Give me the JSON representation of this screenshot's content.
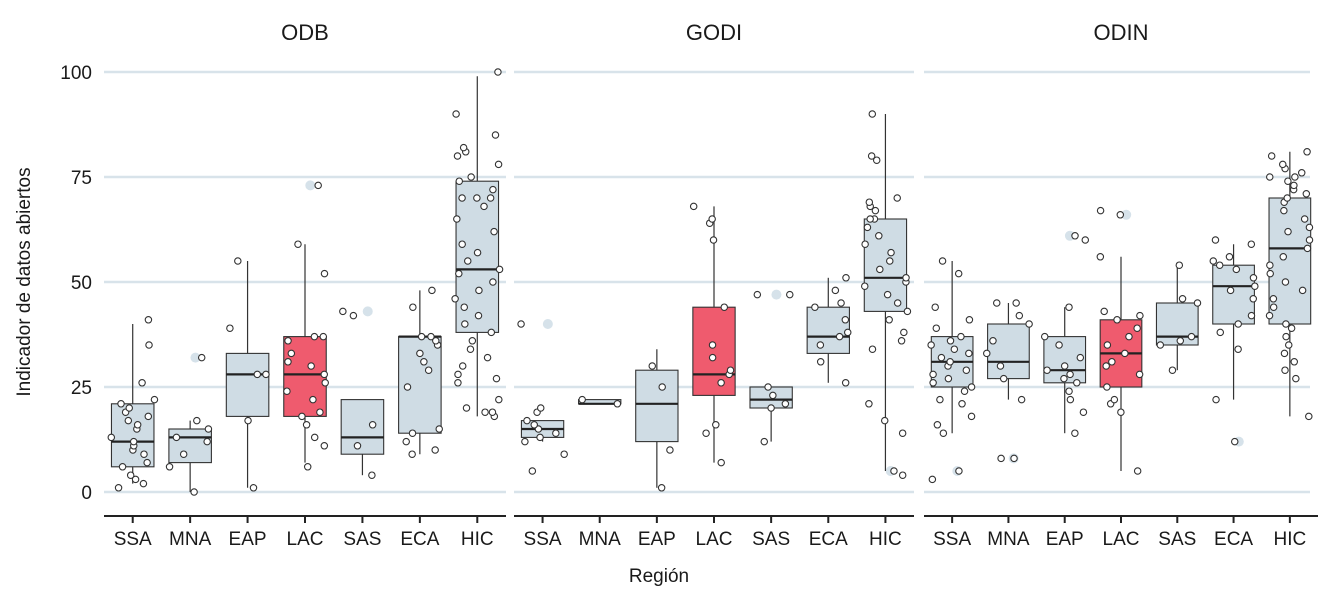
{
  "chart_data": {
    "type": "box",
    "ylabel": "Indicador de datos abiertos",
    "xlabel": "Región",
    "ylim": [
      0,
      100
    ],
    "yticks": [
      0,
      25,
      50,
      75,
      100
    ],
    "grid": true,
    "colors": {
      "default_box": "#cfdce4",
      "highlight_box": "#ef5b6e",
      "grid": "#d8e3ea",
      "outlier": "#d6e2ea"
    },
    "highlight_category": "LAC",
    "panels": [
      {
        "title": "ODB",
        "categories": [
          {
            "name": "SSA",
            "whisker_low": 2,
            "q1": 6,
            "median": 12,
            "q3": 21,
            "whisker_high": 40,
            "points": [
              1,
              2,
              3,
              4,
              6,
              7,
              9,
              10,
              11,
              12,
              13,
              15,
              16,
              17,
              18,
              19,
              20,
              21,
              22,
              26,
              35,
              41
            ],
            "outliers": []
          },
          {
            "name": "MNA",
            "whisker_low": 0,
            "q1": 7,
            "median": 13,
            "q3": 15,
            "whisker_high": 17,
            "points": [
              0,
              6,
              9,
              12,
              13,
              15,
              17,
              32
            ],
            "outliers": [
              32
            ]
          },
          {
            "name": "EAP",
            "whisker_low": 1,
            "q1": 18,
            "median": 28,
            "q3": 33,
            "whisker_high": 55,
            "points": [
              1,
              17,
              28,
              28,
              39,
              55
            ],
            "outliers": []
          },
          {
            "name": "LAC",
            "whisker_low": 7,
            "q1": 18,
            "median": 28,
            "q3": 37,
            "whisker_high": 59,
            "points": [
              6,
              11,
              13,
              16,
              18,
              19,
              22,
              24,
              26,
              28,
              30,
              31,
              33,
              36,
              37,
              37,
              52,
              59,
              73
            ],
            "outliers": [
              73
            ]
          },
          {
            "name": "SAS",
            "whisker_low": 4,
            "q1": 9,
            "median": 13,
            "q3": 22,
            "whisker_high": 22,
            "points": [
              4,
              11,
              16,
              42,
              43
            ],
            "outliers": [
              43
            ]
          },
          {
            "name": "ECA",
            "whisker_low": 9,
            "q1": 14,
            "median": 37,
            "q3": 37,
            "whisker_high": 48,
            "points": [
              9,
              10,
              12,
              14,
              15,
              25,
              29,
              31,
              33,
              35,
              36,
              37,
              37,
              44,
              48
            ],
            "outliers": []
          },
          {
            "name": "HIC",
            "whisker_low": 18,
            "q1": 38,
            "median": 53,
            "q3": 74,
            "whisker_high": 99,
            "points": [
              18,
              19,
              19,
              20,
              22,
              26,
              27,
              28,
              30,
              32,
              34,
              36,
              38,
              40,
              42,
              44,
              46,
              48,
              50,
              52,
              53,
              55,
              57,
              59,
              62,
              65,
              68,
              70,
              70,
              70,
              72,
              74,
              75,
              78,
              80,
              81,
              82,
              85,
              90,
              100
            ],
            "outliers": []
          }
        ]
      },
      {
        "title": "GODI",
        "categories": [
          {
            "name": "SSA",
            "whisker_low": 12,
            "q1": 13,
            "median": 15,
            "q3": 17,
            "whisker_high": 17,
            "points": [
              5,
              9,
              12,
              13,
              14,
              15,
              16,
              17,
              19,
              20,
              40
            ],
            "outliers": [
              40
            ]
          },
          {
            "name": "MNA",
            "whisker_low": 21,
            "q1": 21,
            "median": 21,
            "q3": 22,
            "whisker_high": 22,
            "points": [
              21,
              22
            ],
            "outliers": []
          },
          {
            "name": "EAP",
            "whisker_low": 1,
            "q1": 12,
            "median": 21,
            "q3": 29,
            "whisker_high": 34,
            "points": [
              1,
              10,
              25,
              30
            ],
            "outliers": []
          },
          {
            "name": "LAC",
            "whisker_low": 7,
            "q1": 23,
            "median": 28,
            "q3": 44,
            "whisker_high": 68,
            "points": [
              7,
              14,
              16,
              26,
              28,
              29,
              32,
              35,
              44,
              60,
              64,
              65,
              68
            ],
            "outliers": []
          },
          {
            "name": "SAS",
            "whisker_low": 12,
            "q1": 20,
            "median": 22,
            "q3": 25,
            "whisker_high": 25,
            "points": [
              12,
              20,
              21,
              23,
              25,
              47,
              47
            ],
            "outliers": [
              47
            ]
          },
          {
            "name": "ECA",
            "whisker_low": 26,
            "q1": 33,
            "median": 37,
            "q3": 44,
            "whisker_high": 51,
            "points": [
              26,
              31,
              35,
              37,
              38,
              41,
              44,
              45,
              48,
              51
            ],
            "outliers": []
          },
          {
            "name": "HIC",
            "whisker_low": 5,
            "q1": 43,
            "median": 51,
            "q3": 65,
            "whisker_high": 90,
            "points": [
              4,
              5,
              14,
              17,
              21,
              34,
              36,
              38,
              41,
              43,
              45,
              47,
              49,
              50,
              51,
              53,
              55,
              57,
              59,
              61,
              63,
              65,
              65,
              67,
              68,
              69,
              70,
              79,
              80,
              90
            ],
            "outliers": [
              5
            ]
          }
        ]
      },
      {
        "title": "ODIN",
        "categories": [
          {
            "name": "SSA",
            "whisker_low": 14,
            "q1": 25,
            "median": 31,
            "q3": 37,
            "whisker_high": 55,
            "points": [
              3,
              5,
              14,
              16,
              18,
              21,
              22,
              24,
              25,
              26,
              27,
              28,
              29,
              30,
              31,
              32,
              33,
              34,
              35,
              36,
              37,
              39,
              41,
              44,
              52,
              55
            ],
            "outliers": [
              5
            ]
          },
          {
            "name": "MNA",
            "whisker_low": 22,
            "q1": 27,
            "median": 31,
            "q3": 40,
            "whisker_high": 45,
            "points": [
              8,
              8,
              22,
              27,
              30,
              33,
              36,
              40,
              42,
              45,
              45
            ],
            "outliers": [
              8
            ]
          },
          {
            "name": "EAP",
            "whisker_low": 14,
            "q1": 26,
            "median": 29,
            "q3": 37,
            "whisker_high": 44,
            "points": [
              14,
              19,
              22,
              24,
              26,
              27,
              28,
              29,
              30,
              32,
              35,
              37,
              44,
              60,
              61
            ],
            "outliers": [
              61
            ]
          },
          {
            "name": "LAC",
            "whisker_low": 5,
            "q1": 25,
            "median": 33,
            "q3": 41,
            "whisker_high": 56,
            "points": [
              5,
              19,
              21,
              22,
              25,
              28,
              30,
              31,
              33,
              35,
              37,
              39,
              41,
              42,
              43,
              56,
              66,
              67
            ],
            "outliers": [
              66
            ]
          },
          {
            "name": "SAS",
            "whisker_low": 29,
            "q1": 35,
            "median": 37,
            "q3": 45,
            "whisker_high": 54,
            "points": [
              29,
              35,
              36,
              37,
              45,
              46,
              54
            ],
            "outliers": []
          },
          {
            "name": "ECA",
            "whisker_low": 22,
            "q1": 40,
            "median": 49,
            "q3": 54,
            "whisker_high": 59,
            "points": [
              12,
              22,
              34,
              38,
              40,
              42,
              46,
              48,
              49,
              51,
              53,
              54,
              55,
              56,
              59,
              60
            ],
            "outliers": [
              12
            ]
          },
          {
            "name": "HIC",
            "whisker_low": 18,
            "q1": 40,
            "median": 58,
            "q3": 70,
            "whisker_high": 81,
            "points": [
              18,
              27,
              29,
              31,
              33,
              35,
              37,
              39,
              40,
              42,
              44,
              46,
              48,
              50,
              52,
              54,
              56,
              58,
              60,
              62,
              63,
              65,
              67,
              69,
              70,
              71,
              72,
              73,
              74,
              75,
              75,
              76,
              77,
              78,
              80,
              81
            ],
            "outliers": []
          }
        ]
      }
    ]
  }
}
